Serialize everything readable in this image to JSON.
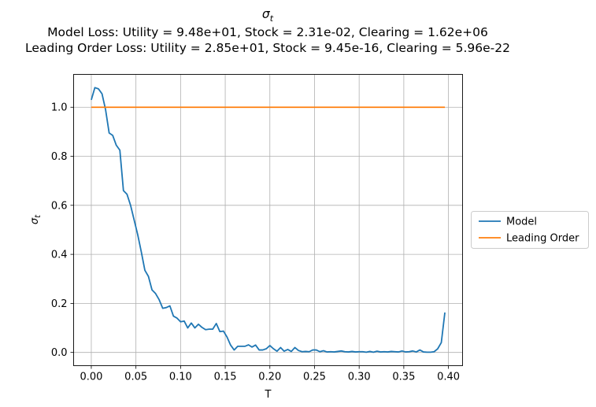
{
  "chart_data": {
    "type": "line",
    "title": "σ",
    "title_subscript": "t",
    "subtitle_lines": [
      "Model Loss: Utility = 9.48e+01, Stock = 2.31e-02, Clearing = 1.62e+06",
      "Leading Order Loss: Utility = 2.85e+01, Stock = 9.45e-16, Clearing = 5.96e-22"
    ],
    "xlabel": "T",
    "ylabel": "σ",
    "ylabel_subscript": "t",
    "xlim": [
      -0.0198,
      0.4158
    ],
    "ylim": [
      -0.054,
      1.134
    ],
    "x_ticks": [
      0.0,
      0.05,
      0.1,
      0.15,
      0.2,
      0.25,
      0.3,
      0.35,
      0.4
    ],
    "x_tick_labels": [
      "0.00",
      "0.05",
      "0.10",
      "0.15",
      "0.20",
      "0.25",
      "0.30",
      "0.35",
      "0.40"
    ],
    "y_ticks": [
      0.0,
      0.2,
      0.4,
      0.6,
      0.8,
      1.0
    ],
    "y_tick_labels": [
      "0.0",
      "0.2",
      "0.4",
      "0.6",
      "0.8",
      "1.0"
    ],
    "grid": true,
    "legend_position": "outside-right",
    "series": [
      {
        "name": "Model",
        "color": "#1f77b4",
        "x": [
          0.0,
          0.004,
          0.008,
          0.012,
          0.016,
          0.02,
          0.024,
          0.028,
          0.032,
          0.036,
          0.04,
          0.044,
          0.048,
          0.052,
          0.056,
          0.06,
          0.064,
          0.068,
          0.072,
          0.076,
          0.08,
          0.084,
          0.088,
          0.092,
          0.096,
          0.1,
          0.104,
          0.108,
          0.112,
          0.116,
          0.12,
          0.124,
          0.128,
          0.132,
          0.136,
          0.14,
          0.144,
          0.148,
          0.152,
          0.156,
          0.16,
          0.164,
          0.168,
          0.172,
          0.176,
          0.18,
          0.184,
          0.188,
          0.192,
          0.196,
          0.2,
          0.204,
          0.208,
          0.212,
          0.216,
          0.22,
          0.224,
          0.228,
          0.232,
          0.236,
          0.24,
          0.244,
          0.248,
          0.252,
          0.256,
          0.26,
          0.264,
          0.268,
          0.272,
          0.276,
          0.28,
          0.284,
          0.288,
          0.292,
          0.296,
          0.3,
          0.304,
          0.308,
          0.312,
          0.316,
          0.32,
          0.324,
          0.328,
          0.332,
          0.336,
          0.34,
          0.344,
          0.348,
          0.352,
          0.356,
          0.36,
          0.364,
          0.368,
          0.372,
          0.376,
          0.38,
          0.384,
          0.388,
          0.392,
          0.396
        ],
        "y": [
          1.03,
          1.08,
          1.075,
          1.055,
          0.99,
          0.895,
          0.885,
          0.845,
          0.825,
          0.66,
          0.645,
          0.6,
          0.54,
          0.48,
          0.41,
          0.335,
          0.31,
          0.255,
          0.24,
          0.215,
          0.18,
          0.183,
          0.19,
          0.148,
          0.14,
          0.125,
          0.128,
          0.1,
          0.12,
          0.1,
          0.115,
          0.102,
          0.093,
          0.095,
          0.095,
          0.118,
          0.085,
          0.087,
          0.063,
          0.03,
          0.01,
          0.025,
          0.025,
          0.025,
          0.031,
          0.022,
          0.03,
          0.01,
          0.01,
          0.015,
          0.028,
          0.015,
          0.005,
          0.02,
          0.005,
          0.012,
          0.004,
          0.02,
          0.008,
          0.003,
          0.004,
          0.003,
          0.01,
          0.01,
          0.003,
          0.007,
          0.002,
          0.003,
          0.002,
          0.004,
          0.006,
          0.003,
          0.002,
          0.004,
          0.002,
          0.003,
          0.003,
          0.001,
          0.004,
          0.001,
          0.005,
          0.002,
          0.003,
          0.002,
          0.004,
          0.003,
          0.002,
          0.006,
          0.002,
          0.003,
          0.006,
          0.002,
          0.01,
          0.002,
          0.001,
          0.001,
          0.003,
          0.015,
          0.04,
          0.163
        ]
      },
      {
        "name": "Leading Order",
        "color": "#ff7f0e",
        "x": [
          0.0,
          0.396
        ],
        "y": [
          1.0,
          1.0
        ]
      }
    ]
  }
}
